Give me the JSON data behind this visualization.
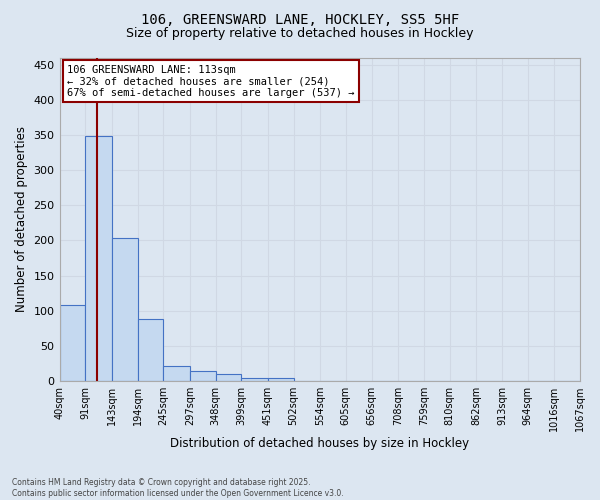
{
  "title_line1": "106, GREENSWARD LANE, HOCKLEY, SS5 5HF",
  "title_line2": "Size of property relative to detached houses in Hockley",
  "xlabel": "Distribution of detached houses by size in Hockley",
  "ylabel": "Number of detached properties",
  "footnote": "Contains HM Land Registry data © Crown copyright and database right 2025.\nContains public sector information licensed under the Open Government Licence v3.0.",
  "bar_left_edges": [
    40,
    91,
    143,
    194,
    245,
    297,
    348,
    399,
    451,
    502,
    554,
    605,
    656,
    708,
    759,
    810,
    862,
    913,
    964,
    1016
  ],
  "bar_widths": [
    51,
    52,
    51,
    51,
    52,
    51,
    51,
    52,
    51,
    52,
    51,
    51,
    52,
    51,
    51,
    52,
    51,
    51,
    52,
    51
  ],
  "bar_heights": [
    109,
    349,
    204,
    88,
    22,
    14,
    10,
    5,
    5,
    0,
    0,
    0,
    0,
    0,
    0,
    0,
    0,
    0,
    0,
    0
  ],
  "bar_facecolor": "#c5d9f0",
  "bar_edgecolor": "#4472c4",
  "grid_color": "#d0d8e4",
  "bg_color": "#dce6f1",
  "property_x": 113,
  "vline_color": "#8b0000",
  "annotation_text": "106 GREENSWARD LANE: 113sqm\n← 32% of detached houses are smaller (254)\n67% of semi-detached houses are larger (537) →",
  "annotation_box_color": "#8b0000",
  "annotation_bg": "#ffffff",
  "ylim": [
    0,
    460
  ],
  "yticks": [
    0,
    50,
    100,
    150,
    200,
    250,
    300,
    350,
    400,
    450
  ],
  "xlim": [
    40,
    1067
  ],
  "xtick_labels": [
    "40sqm",
    "91sqm",
    "143sqm",
    "194sqm",
    "245sqm",
    "297sqm",
    "348sqm",
    "399sqm",
    "451sqm",
    "502sqm",
    "554sqm",
    "605sqm",
    "656sqm",
    "708sqm",
    "759sqm",
    "810sqm",
    "862sqm",
    "913sqm",
    "964sqm",
    "1016sqm",
    "1067sqm"
  ],
  "xtick_positions": [
    40,
    91,
    143,
    194,
    245,
    297,
    348,
    399,
    451,
    502,
    554,
    605,
    656,
    708,
    759,
    810,
    862,
    913,
    964,
    1016,
    1067
  ]
}
